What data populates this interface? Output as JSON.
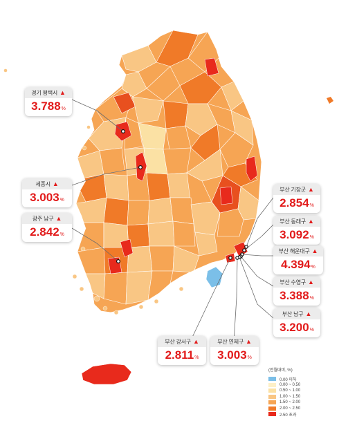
{
  "legend": {
    "title": "(전월대비, %)",
    "items": [
      {
        "label": "0.00 이하",
        "color": "#7bbfe8"
      },
      {
        "label": "0.00 ~ 0.50",
        "color": "#fdf0c8"
      },
      {
        "label": "0.50 ~ 1.00",
        "color": "#fbe1a4"
      },
      {
        "label": "1.00 ~ 1.50",
        "color": "#f9c684"
      },
      {
        "label": "1.50 ~ 2.00",
        "color": "#f6a554"
      },
      {
        "label": "2.00 ~ 2.50",
        "color": "#f07a28"
      },
      {
        "label": "2.50 초과",
        "color": "#e82a1c"
      }
    ]
  },
  "callouts": [
    {
      "name": "경기 평택시",
      "value": "3.788",
      "unit": "%"
    },
    {
      "name": "세종시",
      "value": "3.003",
      "unit": "%"
    },
    {
      "name": "광주 남구",
      "value": "2.842",
      "unit": "%"
    },
    {
      "name": "부산 기장군",
      "value": "2.854",
      "unit": "%"
    },
    {
      "name": "부산 동래구",
      "value": "3.092",
      "unit": "%"
    },
    {
      "name": "부산 해운대구",
      "value": "4.394",
      "unit": "%"
    },
    {
      "name": "부산 수영구",
      "value": "3.388",
      "unit": "%"
    },
    {
      "name": "부산 남구",
      "value": "3.200",
      "unit": "%"
    },
    {
      "name": "부산 강서구",
      "value": "2.811",
      "unit": "%"
    },
    {
      "name": "부산 연제구",
      "value": "3.003",
      "unit": "%"
    }
  ],
  "up_marker": "▲"
}
